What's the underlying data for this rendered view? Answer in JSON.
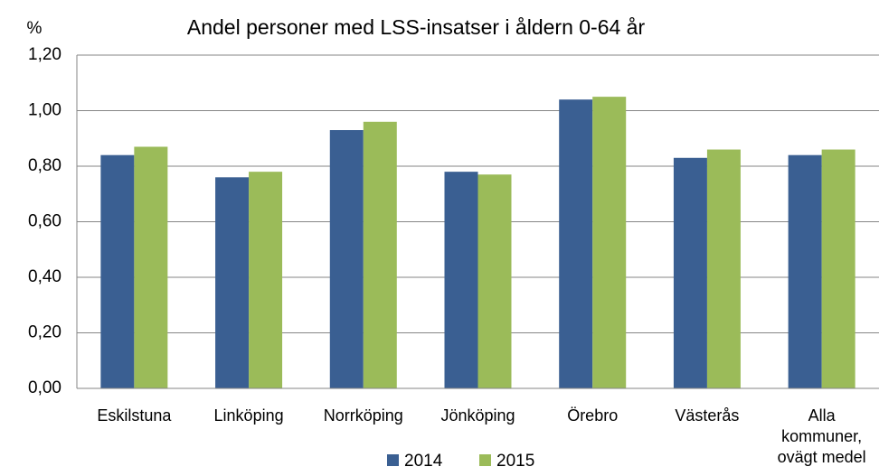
{
  "chart_data": {
    "type": "bar",
    "title": "Andel personer med LSS-insatser i åldern 0-64 år",
    "y_axis_label": "%",
    "categories": [
      "Eskilstuna",
      "Linköping",
      "Norrköping",
      "Jönköping",
      "Örebro",
      "Västerås",
      "Alla kommuner, ovägt medel"
    ],
    "series": [
      {
        "name": "2014",
        "color": "#3a5f92",
        "values": [
          0.84,
          0.76,
          0.93,
          0.78,
          1.04,
          0.83,
          0.84
        ]
      },
      {
        "name": "2015",
        "color": "#9bbb59",
        "values": [
          0.87,
          0.78,
          0.96,
          0.77,
          1.05,
          0.86,
          0.86
        ]
      }
    ],
    "ylim": [
      0,
      1.2
    ],
    "yticks": [
      {
        "value": 0,
        "label": "0,00"
      },
      {
        "value": 0.2,
        "label": "0,20"
      },
      {
        "value": 0.4,
        "label": "0,40"
      },
      {
        "value": 0.6,
        "label": "0,60"
      },
      {
        "value": 0.8,
        "label": "0,80"
      },
      {
        "value": 1.0,
        "label": "1,00"
      },
      {
        "value": 1.2,
        "label": "1,20"
      }
    ],
    "grid": true,
    "legend": "bottom"
  }
}
